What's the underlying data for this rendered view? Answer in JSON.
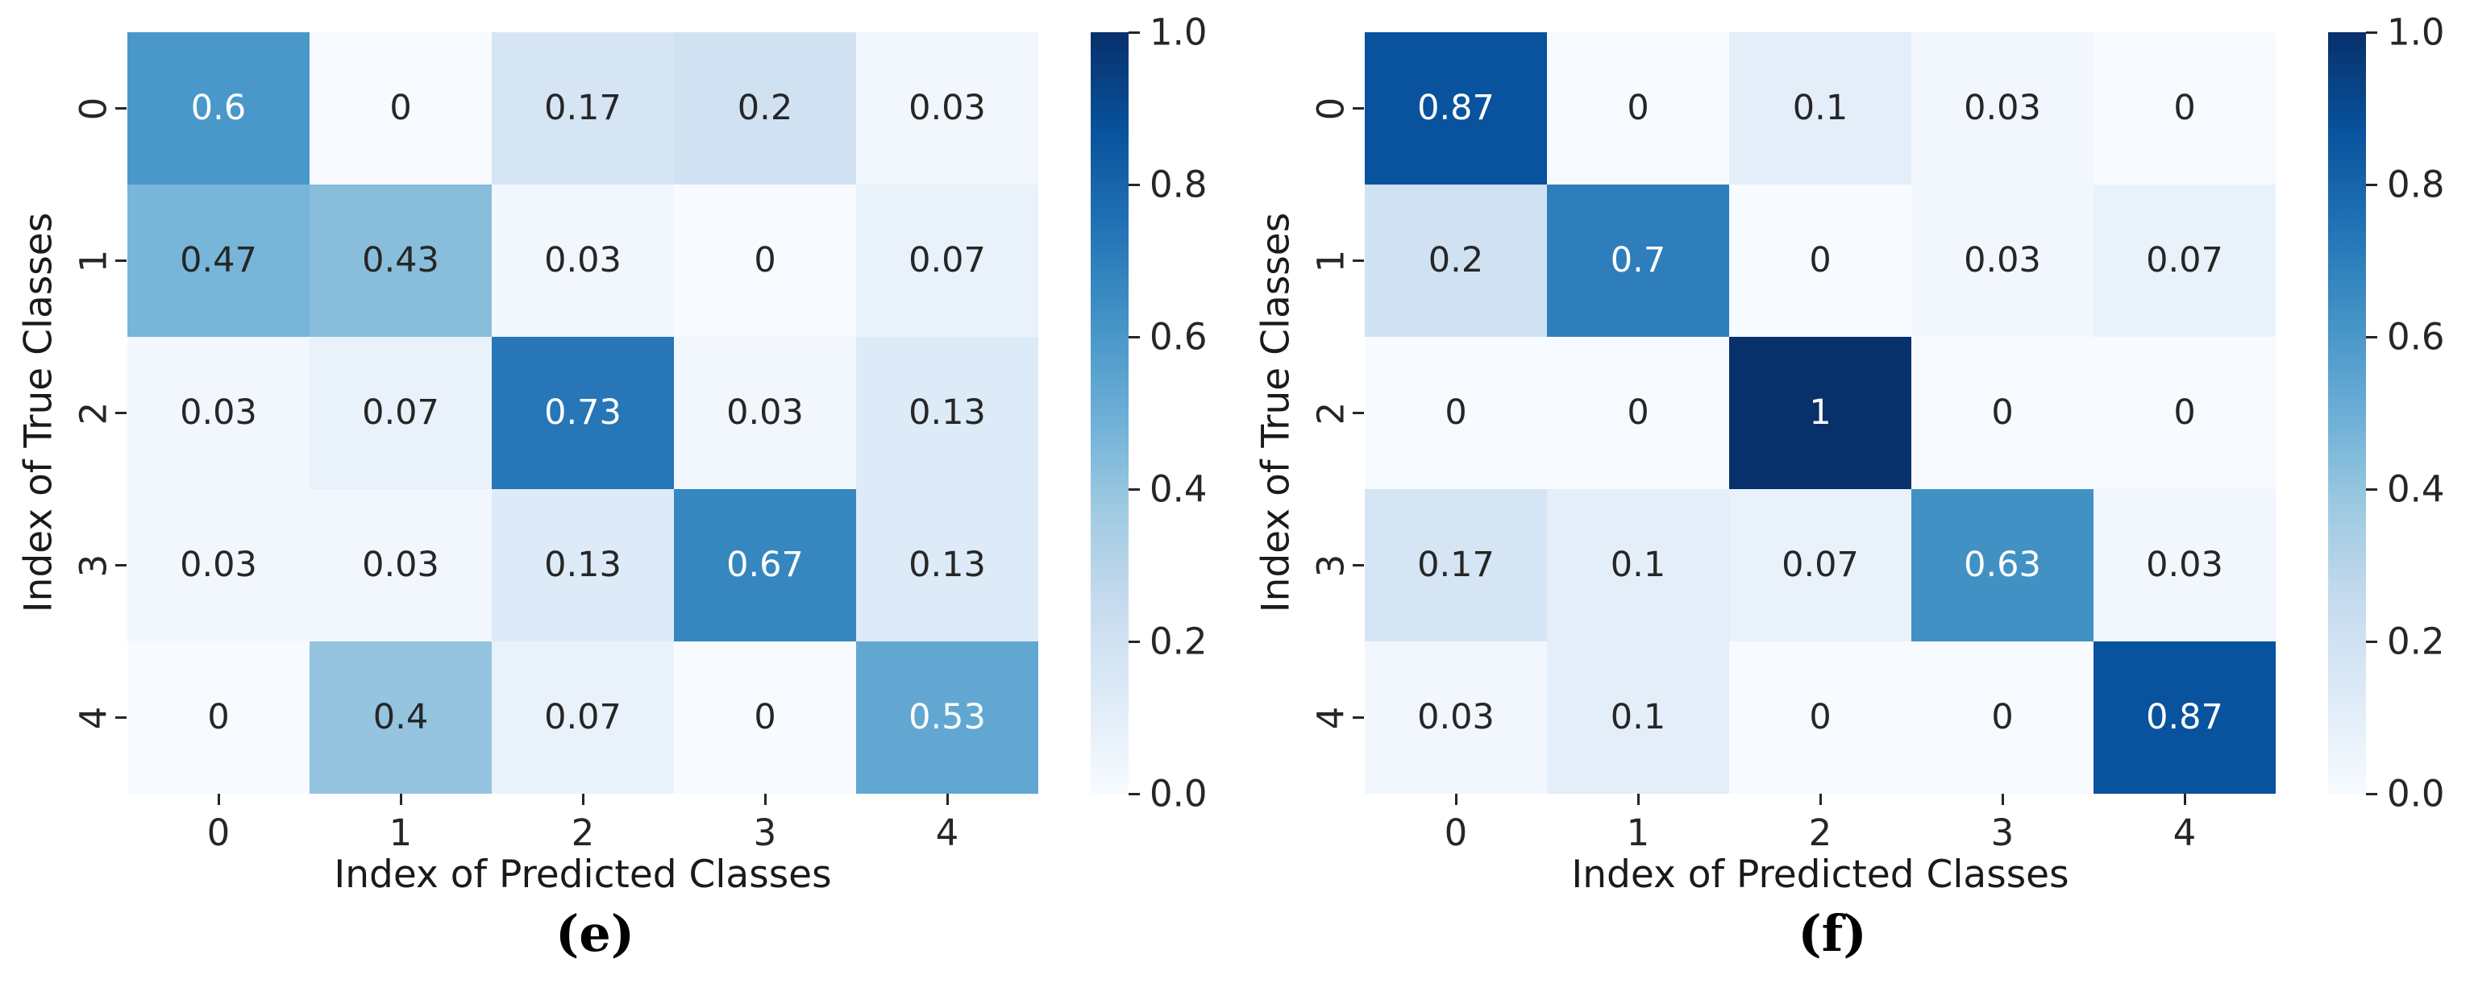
{
  "figure": {
    "background": "#ffffff",
    "text_color": "#262626",
    "annot_light": "#ffffff",
    "annot_dark": "#262626"
  },
  "colormap": {
    "name": "Blues",
    "anchors": [
      "#f7fbff",
      "#deebf7",
      "#c6dbef",
      "#9ecae1",
      "#6baed6",
      "#4292c6",
      "#2171b5",
      "#08519c",
      "#08306b"
    ]
  },
  "chart_data": [
    {
      "type": "heatmap",
      "caption": "(e)",
      "xlabel": "Index of Predicted Classes",
      "ylabel": "Index of True Classes",
      "x_tick_labels": [
        "0",
        "1",
        "2",
        "3",
        "4"
      ],
      "y_tick_labels": [
        "0",
        "1",
        "2",
        "3",
        "4"
      ],
      "vmin": 0,
      "vmax": 1,
      "colorbar_tick_values": [
        1.0,
        0.8,
        0.6,
        0.4,
        0.2,
        0.0
      ],
      "legend_position": "right-colorbar",
      "grid": false,
      "values": [
        [
          0.6,
          0,
          0.17,
          0.2,
          0.03
        ],
        [
          0.47,
          0.43,
          0.03,
          0,
          0.07
        ],
        [
          0.03,
          0.07,
          0.73,
          0.03,
          0.13
        ],
        [
          0.03,
          0.03,
          0.13,
          0.67,
          0.13
        ],
        [
          0,
          0.4,
          0.07,
          0,
          0.53
        ]
      ]
    },
    {
      "type": "heatmap",
      "caption": "(f)",
      "xlabel": "Index of Predicted Classes",
      "ylabel": "Index of True Classes",
      "x_tick_labels": [
        "0",
        "1",
        "2",
        "3",
        "4"
      ],
      "y_tick_labels": [
        "0",
        "1",
        "2",
        "3",
        "4"
      ],
      "vmin": 0,
      "vmax": 1,
      "colorbar_tick_values": [
        1.0,
        0.8,
        0.6,
        0.4,
        0.2,
        0.0
      ],
      "legend_position": "right-colorbar",
      "grid": false,
      "values": [
        [
          0.87,
          0,
          0.1,
          0.03,
          0
        ],
        [
          0.2,
          0.7,
          0,
          0.03,
          0.07
        ],
        [
          0,
          0,
          1,
          0,
          0
        ],
        [
          0.17,
          0.1,
          0.07,
          0.63,
          0.03
        ],
        [
          0.03,
          0.1,
          0,
          0,
          0.87
        ]
      ]
    }
  ]
}
